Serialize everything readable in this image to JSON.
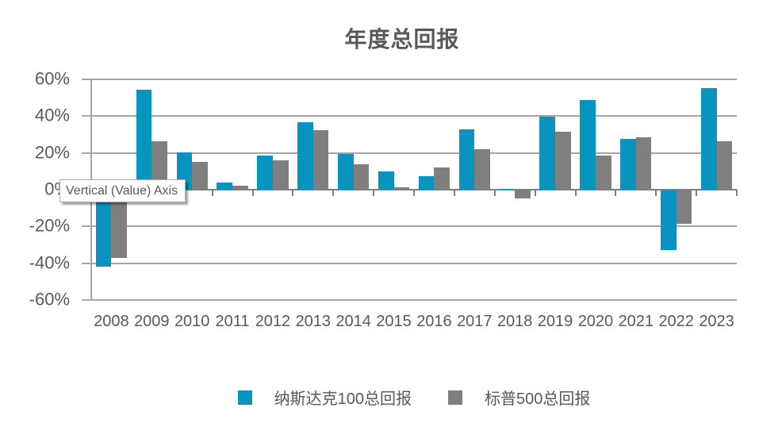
{
  "title": "年度总回报",
  "tooltip": {
    "text": "Vertical (Value) Axis"
  },
  "colors": {
    "series_blue": "#0894be",
    "series_gray": "#7f7f7f",
    "gridline": "#a6a6a6",
    "axis_line": "#7f7f7f",
    "text": "#595959",
    "tooltip_border": "#ababab"
  },
  "chart_data": {
    "type": "bar",
    "title": "年度总回报",
    "categories": [
      "2008",
      "2009",
      "2010",
      "2011",
      "2012",
      "2013",
      "2014",
      "2015",
      "2016",
      "2017",
      "2018",
      "2019",
      "2020",
      "2021",
      "2022",
      "2023"
    ],
    "series": [
      {
        "name": "纳斯达克100总回报",
        "color": "#0894be",
        "values": [
          -41.6,
          54.6,
          20.1,
          3.7,
          18.4,
          36.9,
          19.4,
          9.8,
          7.3,
          33.0,
          0.5,
          39.5,
          48.9,
          27.5,
          -32.4,
          55.1
        ]
      },
      {
        "name": "标普500总回报",
        "color": "#7f7f7f",
        "values": [
          -36.5,
          26.5,
          15.1,
          2.1,
          16.0,
          32.4,
          13.7,
          1.4,
          12.0,
          21.8,
          -4.4,
          31.5,
          18.4,
          28.7,
          -18.1,
          26.3
        ]
      }
    ],
    "xlabel": "",
    "ylabel": "",
    "ylim": [
      -60,
      60
    ],
    "ytick_step": 20,
    "ytick_labels": [
      "60%",
      "40%",
      "20%",
      "0%",
      "-20%",
      "-40%",
      "-60%"
    ],
    "grid": true,
    "legend_position": "bottom",
    "unit": "%"
  }
}
